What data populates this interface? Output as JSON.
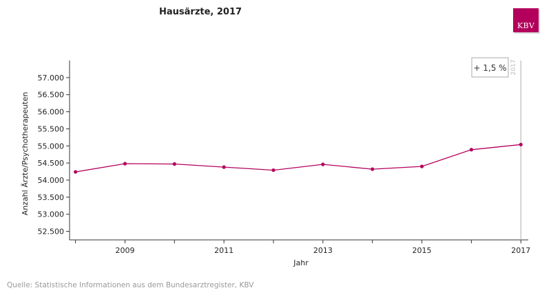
{
  "chart_data": {
    "type": "line",
    "title": "Hausärzte, 2017",
    "xlabel": "Jahr",
    "ylabel": "Anzahl Ärzte/Psychotherapeuten",
    "x": [
      2008,
      2009,
      2010,
      2011,
      2012,
      2013,
      2014,
      2015,
      2016,
      2017
    ],
    "series": [
      {
        "values": [
          54240,
          54480,
          54470,
          54380,
          54290,
          54460,
          54320,
          54400,
          54890,
          55040
        ]
      }
    ],
    "ylim": [
      52250,
      57500
    ],
    "xlim": [
      2007.88,
      2017.15
    ],
    "yticks": [
      52500,
      53000,
      53500,
      54000,
      54500,
      55000,
      55500,
      56000,
      56500,
      57000
    ],
    "ytick_labels": [
      "52.500",
      "53.000",
      "53.500",
      "54.000",
      "54.500",
      "55.000",
      "55.500",
      "56.000",
      "56.500",
      "57.000"
    ],
    "xticks": [
      2008,
      2009,
      2010,
      2011,
      2012,
      2013,
      2014,
      2015,
      2016,
      2017
    ],
    "xtick_labels": [
      "2009",
      "2011",
      "2013",
      "2015",
      "2017"
    ],
    "xtick_label_years": [
      2009,
      2011,
      2013,
      2015,
      2017
    ],
    "annotation": "+ 1,5 %",
    "marker_label": "2017",
    "grid": false,
    "colors": {
      "line": "#b3005c",
      "axis": "#333333",
      "marker_line": "#aaaaaa"
    }
  },
  "logo_text": "KBV",
  "source": "Quelle: Statistische Informationen aus dem Bundesarztregister, KBV"
}
